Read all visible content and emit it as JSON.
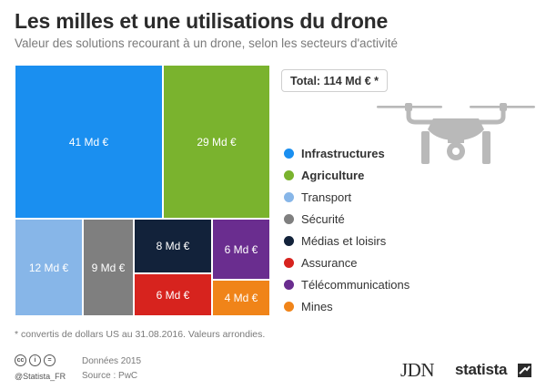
{
  "header": {
    "title": "Les milles et une utilisations du drone",
    "subtitle": "Valeur des solutions recourant à un drone, selon les secteurs d'activité"
  },
  "total_label": "Total: 114 Md € *",
  "chart_data": {
    "type": "treemap",
    "title": "Les milles et une utilisations du drone",
    "subtitle": "Valeur des solutions recourant à un drone, selon les secteurs d'activité",
    "unit": "Md €",
    "total": 114,
    "items": [
      {
        "name": "Infrastructures",
        "value": 41,
        "label": "41 Md €",
        "color": "#1a8ff0"
      },
      {
        "name": "Agriculture",
        "value": 29,
        "label": "29 Md €",
        "color": "#7ab32e"
      },
      {
        "name": "Transport",
        "value": 12,
        "label": "12 Md €",
        "color": "#87b6e8"
      },
      {
        "name": "Sécurité",
        "value": 9,
        "label": "9 Md €",
        "color": "#7f7f7f"
      },
      {
        "name": "Médias et loisirs",
        "value": 8,
        "label": "8 Md €",
        "color": "#12223a"
      },
      {
        "name": "Assurance",
        "value": 6,
        "label": "6 Md €",
        "color": "#d7231e"
      },
      {
        "name": "Télécommunications",
        "value": 6,
        "label": "6 Md €",
        "color": "#6a2d8f"
      },
      {
        "name": "Mines",
        "value": 4,
        "label": "4 Md €",
        "color": "#f08419"
      }
    ],
    "legend_placement": "right"
  },
  "legend": [
    {
      "label": "Infrastructures",
      "color": "#1a8ff0",
      "bold": true
    },
    {
      "label": "Agriculture",
      "color": "#7ab32e",
      "bold": true
    },
    {
      "label": "Transport",
      "color": "#87b6e8",
      "bold": false
    },
    {
      "label": "Sécurité",
      "color": "#7f7f7f",
      "bold": false
    },
    {
      "label": "Médias et loisirs",
      "color": "#12223a",
      "bold": false
    },
    {
      "label": "Assurance",
      "color": "#d7231e",
      "bold": false
    },
    {
      "label": "Télécommunications",
      "color": "#6a2d8f",
      "bold": false
    },
    {
      "label": "Mines",
      "color": "#f08419",
      "bold": false
    }
  ],
  "footnote": "* convertis de dollars US au 31.08.2016. Valeurs arrondies.",
  "footer": {
    "cc_icons": [
      "cc",
      "i",
      "="
    ],
    "handle": "@Statista_FR",
    "data_year": "Données 2015",
    "source": "Source : PwC",
    "logo_jdn": "JDN",
    "logo_statista": "statista"
  },
  "icons": {
    "drone": "drone-icon",
    "statista_mark": "statista-mark-icon"
  }
}
